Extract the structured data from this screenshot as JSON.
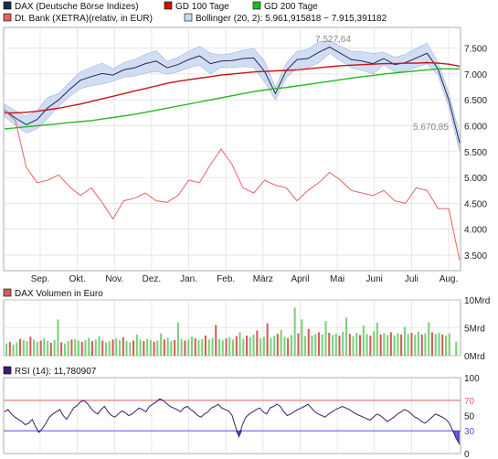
{
  "colors": {
    "dax": "#1e2a55",
    "gd100": "#cc1111",
    "gd200": "#22bb22",
    "dtbank": "#e86060",
    "bollinger_fill": "#c9d8f2",
    "bollinger_edge": "#8fa8d8",
    "vol_up": "#7ad17a",
    "vol_down": "#d65b5b",
    "rsi_line": "#3a1c6e",
    "rsi_fill_high": "#d0306a",
    "rsi_fill_low": "#5a4fd6",
    "rsi70": "#e06060",
    "rsi30": "#5050e0",
    "grid": "#d8d8d8"
  },
  "legend": {
    "dax": "DAX (Deutsche Börse Indizes)",
    "gd100": "GD 100 Tage",
    "gd200": "GD 200 Tage",
    "dtbank": "Dt. Bank (XETRA)(relativ, in EUR)",
    "bollinger": "Bollinger (20, 2): 5.961,915818 − 7.915,391182"
  },
  "annotations": {
    "high": "7.527,64",
    "low": "5.670,85"
  },
  "volume_title": "DAX Volumen in Euro",
  "rsi_title": "RSI (14): 11,780907",
  "chart_data": [
    {
      "type": "line",
      "x_ticks": [
        "Sep.",
        "Okt.",
        "Nov.",
        "Dez.",
        "Jan.",
        "Feb.",
        "März",
        "April",
        "Mai",
        "Juni",
        "Juli",
        "Aug."
      ],
      "y_ticks": [
        "7.500",
        "7.000",
        "6.500",
        "6.000",
        "5.500",
        "5.000",
        "4.500",
        "4.000",
        "3.500"
      ],
      "ylim": [
        3200,
        7900
      ],
      "grid": true,
      "series": [
        {
          "name": "DAX (Deutsche Börse Indizes)",
          "values": [
            6300,
            6150,
            6020,
            6120,
            6350,
            6500,
            6700,
            6880,
            6950,
            7010,
            6980,
            7080,
            7120,
            7200,
            7250,
            7120,
            7180,
            7280,
            7350,
            7200,
            7250,
            7260,
            7300,
            7310,
            7050,
            6620,
            7070,
            7280,
            7300,
            7420,
            7520,
            7400,
            7280,
            7250,
            7200,
            7300,
            7180,
            7220,
            7310,
            7400,
            7100,
            6500,
            5670
          ]
        },
        {
          "name": "GD 100 Tage",
          "values": [
            6250,
            6250,
            6260,
            6280,
            6310,
            6340,
            6380,
            6420,
            6470,
            6520,
            6570,
            6620,
            6670,
            6720,
            6770,
            6820,
            6860,
            6890,
            6920,
            6950,
            6980,
            7000,
            7020,
            7040,
            7050,
            7060,
            7070,
            7080,
            7100,
            7120,
            7140,
            7160,
            7170,
            7180,
            7190,
            7200,
            7200,
            7210,
            7210,
            7220,
            7210,
            7190,
            7150
          ]
        },
        {
          "name": "GD 200 Tage",
          "values": [
            5940,
            5960,
            5980,
            6000,
            6020,
            6040,
            6060,
            6080,
            6100,
            6130,
            6160,
            6190,
            6220,
            6260,
            6300,
            6340,
            6380,
            6420,
            6460,
            6500,
            6540,
            6580,
            6620,
            6660,
            6690,
            6720,
            6740,
            6770,
            6800,
            6830,
            6860,
            6890,
            6920,
            6950,
            6970,
            7000,
            7020,
            7040,
            7060,
            7080,
            7100,
            7100,
            7100
          ]
        },
        {
          "name": "Dt. Bank (XETRA)(relativ, in EUR)",
          "values": [
            6300,
            6100,
            5200,
            4900,
            4950,
            5050,
            4820,
            4650,
            4800,
            4520,
            4200,
            4550,
            4600,
            4700,
            4550,
            4520,
            4650,
            4950,
            4900,
            5250,
            5550,
            5250,
            4800,
            4700,
            4950,
            4850,
            4800,
            4550,
            4750,
            4900,
            5100,
            4950,
            4750,
            4700,
            4650,
            4750,
            4550,
            4500,
            4800,
            4750,
            4400,
            4400,
            3400
          ]
        }
      ]
    },
    {
      "type": "bar",
      "y_ticks": [
        "10Mrd",
        "5Mrd",
        "0Mrd"
      ],
      "ylim": [
        0,
        10
      ],
      "unit": "Mrd",
      "values": [
        2.2,
        2.5,
        2.0,
        2.4,
        3.0,
        2.8,
        2.6,
        3.4,
        2.9,
        2.5,
        2.7,
        3.1,
        2.6,
        2.3,
        2.8,
        6.5,
        2.4,
        2.2,
        2.6,
        2.9,
        3.0,
        2.7,
        2.5,
        2.8,
        3.2,
        2.6,
        2.9,
        3.5,
        2.7,
        2.4,
        2.6,
        2.9,
        3.1,
        2.8,
        3.3,
        2.6,
        2.4,
        2.7,
        3.8,
        2.9,
        2.6,
        3.0,
        2.8,
        2.5,
        2.7,
        4.0,
        2.9,
        3.2,
        2.6,
        2.8,
        6.0,
        3.0,
        2.7,
        2.9,
        3.4,
        3.1,
        2.8,
        3.0,
        3.6,
        2.9,
        3.2,
        5.5,
        3.0,
        2.8,
        3.1,
        3.3,
        2.9,
        3.5,
        4.2,
        3.0,
        3.6,
        3.3,
        3.8,
        4.5,
        3.1,
        3.4,
        5.8,
        3.2,
        3.5,
        3.9,
        4.6,
        3.4,
        3.1,
        3.7,
        8.6,
        4.0,
        6.5,
        3.5,
        4.8,
        3.6,
        3.9,
        4.2,
        3.8,
        6.2,
        4.1,
        3.7,
        4.0,
        3.6,
        4.3,
        6.8,
        3.9,
        3.5,
        4.1,
        3.7,
        5.4,
        3.9,
        3.6,
        4.4,
        5.9,
        3.8,
        4.0,
        3.7,
        4.2,
        3.6,
        4.0,
        3.8,
        5.2,
        3.9,
        4.1,
        3.7,
        4.3,
        3.8,
        4.0,
        6.0,
        4.2,
        3.9,
        4.1,
        3.8,
        3.6,
        4.0,
        0.0,
        2.5
      ]
    },
    {
      "type": "line",
      "name": "RSI (14)",
      "y_ticks": [
        "100",
        "70",
        "50",
        "30",
        "0"
      ],
      "ylim": [
        0,
        100
      ],
      "levels": [
        70,
        30
      ],
      "values": [
        55,
        58,
        52,
        48,
        45,
        42,
        38,
        40,
        45,
        35,
        28,
        33,
        40,
        48,
        52,
        55,
        58,
        50,
        45,
        52,
        60,
        63,
        68,
        70,
        66,
        60,
        55,
        52,
        58,
        62,
        55,
        50,
        48,
        52,
        56,
        54,
        50,
        52,
        56,
        60,
        58,
        55,
        62,
        65,
        68,
        72,
        70,
        66,
        62,
        60,
        58,
        55,
        60,
        62,
        58,
        55,
        50,
        48,
        52,
        55,
        60,
        62,
        65,
        60,
        58,
        56,
        50,
        35,
        22,
        38,
        48,
        52,
        55,
        58,
        60,
        55,
        52,
        60,
        62,
        65,
        62,
        55,
        50,
        52,
        55,
        58,
        60,
        62,
        65,
        60,
        55,
        52,
        50,
        48,
        52,
        55,
        58,
        60,
        62,
        60,
        58,
        55,
        52,
        50,
        48,
        46,
        44,
        48,
        52,
        50,
        46,
        42,
        45,
        48,
        52,
        55,
        58,
        56,
        52,
        48,
        46,
        42,
        40,
        44,
        48,
        52,
        50,
        48,
        45,
        40,
        30,
        20,
        12
      ]
    }
  ]
}
